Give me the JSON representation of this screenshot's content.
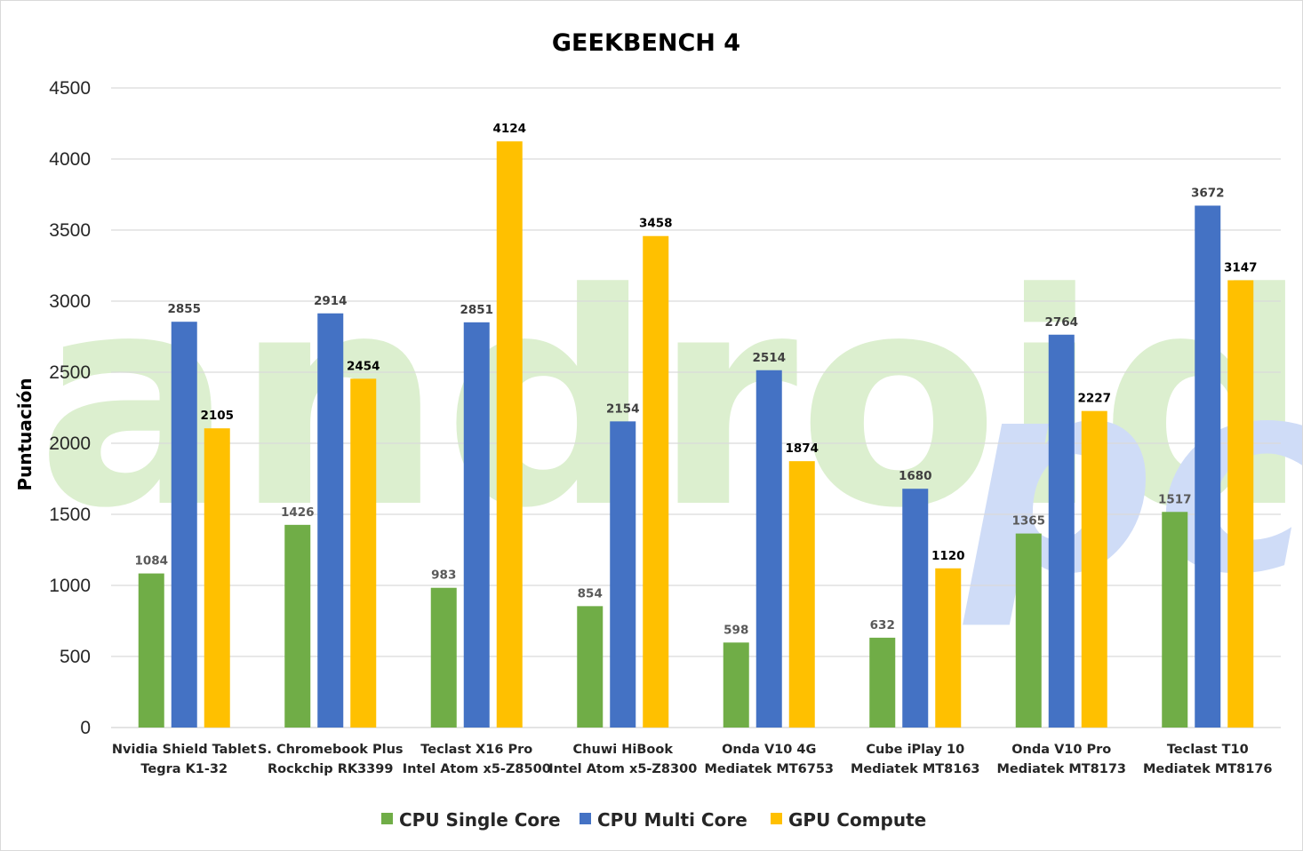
{
  "watermark": {
    "brand_a": "android",
    "brand_b": "pc",
    "color_a": "#dcefcf",
    "color_b": "#cfdcf7"
  },
  "chart_data": {
    "type": "bar",
    "title": "GEEKBENCH 4",
    "xlabel": "",
    "ylabel": "Puntuación",
    "ylim": [
      0,
      4500
    ],
    "yticks": [
      0,
      500,
      1000,
      1500,
      2000,
      2500,
      3000,
      3500,
      4000,
      4500
    ],
    "grid": true,
    "legend": "bottom",
    "categories": [
      [
        "Nvidia Shield Tablet",
        "Tegra K1-32"
      ],
      [
        "S. Chromebook Plus",
        "Rockchip RK3399"
      ],
      [
        "Teclast X16 Pro",
        "Intel Atom x5-Z8500"
      ],
      [
        "Chuwi HiBook",
        "Intel Atom x5-Z8300"
      ],
      [
        "Onda V10 4G",
        "Mediatek MT6753"
      ],
      [
        "Cube iPlay 10",
        "Mediatek MT8163"
      ],
      [
        "Onda V10 Pro",
        "Mediatek MT8173"
      ],
      [
        "Teclast T10",
        "Mediatek MT8176"
      ]
    ],
    "series": [
      {
        "name": "CPU Single Core",
        "color": "#70ad47",
        "label_color": "#595959",
        "values": [
          1084,
          1426,
          983,
          854,
          598,
          632,
          1365,
          1517
        ]
      },
      {
        "name": "CPU Multi Core",
        "color": "#4472c4",
        "label_color": "#404040",
        "values": [
          2855,
          2914,
          2851,
          2154,
          2514,
          1680,
          2764,
          3672
        ]
      },
      {
        "name": "GPU Compute",
        "color": "#ffc000",
        "label_color": "#000000",
        "values": [
          2105,
          2454,
          4124,
          3458,
          1874,
          1120,
          2227,
          3147
        ]
      }
    ]
  }
}
